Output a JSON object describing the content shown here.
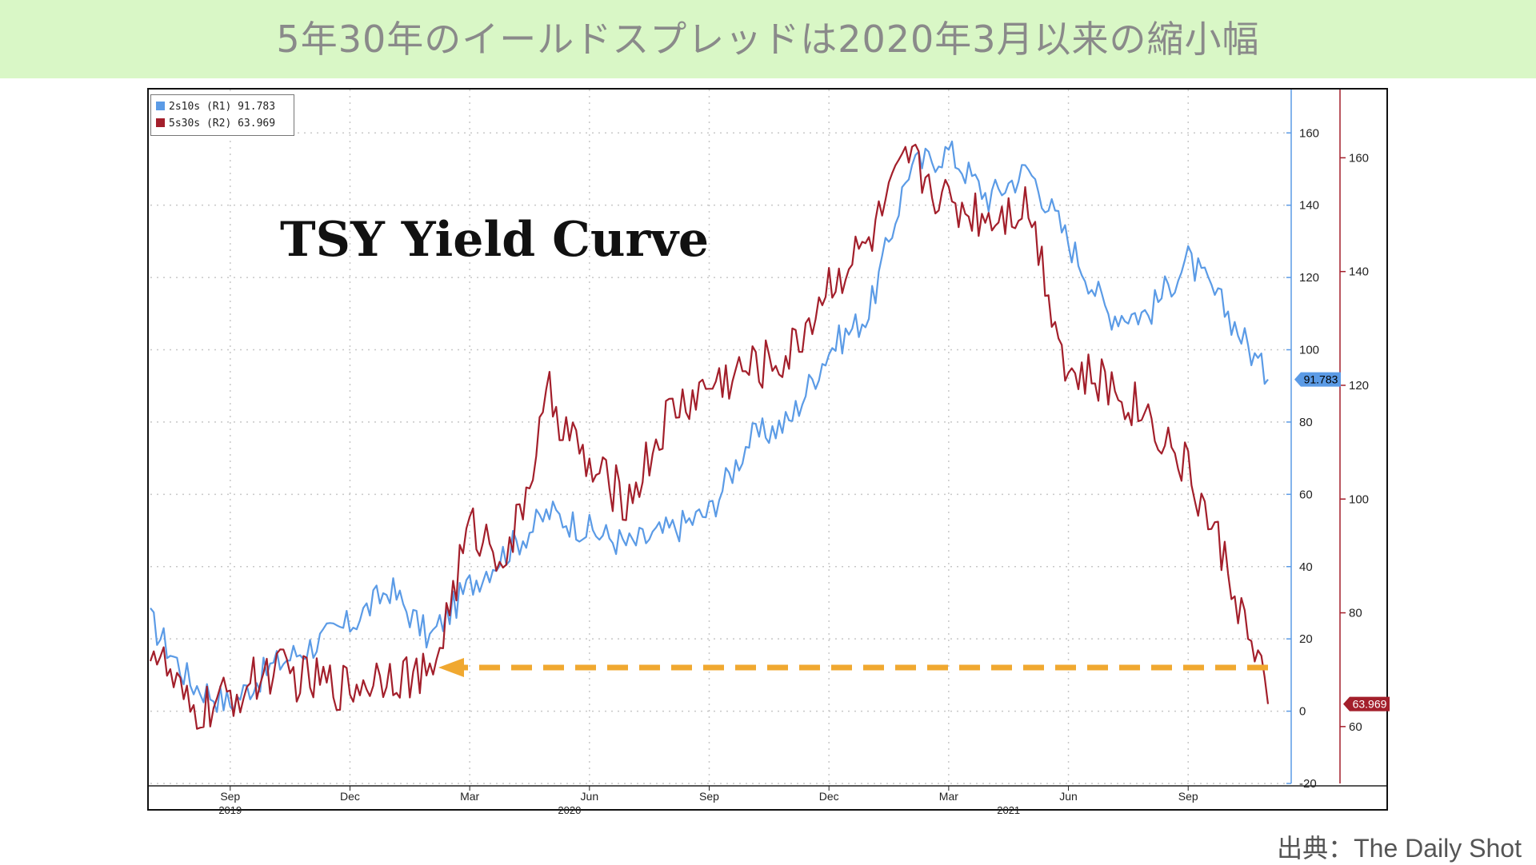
{
  "header": {
    "title": "5年30年のイールドスプレッドは2020年3月以来の縮小幅"
  },
  "source": "出典：The Daily Shot",
  "colors": {
    "banner_bg": "#d9f7c6",
    "series_2s10s": "#5b9be6",
    "series_5s30s": "#a31f2b",
    "arrow": "#f0a830"
  },
  "chart_data": {
    "type": "line",
    "title": "TSY Yield Curve",
    "legend": {
      "placement": "top-left",
      "entries": [
        {
          "label": "2s10s (R1) 91.783",
          "color": "#5b9be6"
        },
        {
          "label": "5s30s (R2) 63.969",
          "color": "#a31f2b"
        }
      ]
    },
    "x_ticks": [
      "Sep",
      "Dec",
      "Mar",
      "Jun",
      "Sep",
      "Dec",
      "Mar",
      "Jun",
      "Sep"
    ],
    "x_year_labels": [
      "2019",
      "2020",
      "2021"
    ],
    "axis_r1": {
      "ticks": [
        160,
        140,
        120,
        100,
        80,
        60,
        40,
        20,
        0,
        -20
      ],
      "range": [
        -20,
        172
      ]
    },
    "axis_r2": {
      "ticks": [
        160,
        140,
        120,
        100,
        80,
        60
      ],
      "range": [
        50,
        172
      ]
    },
    "last_values": {
      "r1": "91.783",
      "r2": "63.969"
    },
    "grid": true,
    "annotation": "dashed arrow from latest 5s30s value back to early 2020 level",
    "series": [
      {
        "name": "2s10s (R1)",
        "axis": "r1",
        "color": "#5b9be6",
        "x": [
          "2019-07",
          "2019-08",
          "2019-09",
          "2019-10",
          "2019-11",
          "2019-12",
          "2020-01",
          "2020-02",
          "2020-03",
          "2020-04",
          "2020-05",
          "2020-06",
          "2020-07",
          "2020-08",
          "2020-09",
          "2020-10",
          "2020-11",
          "2020-12",
          "2021-01",
          "2021-02",
          "2021-03",
          "2021-04",
          "2021-05",
          "2021-06",
          "2021-07",
          "2021-08",
          "2021-09",
          "2021-10",
          "2021-11"
        ],
        "values": [
          25,
          8,
          2,
          12,
          18,
          24,
          34,
          20,
          35,
          45,
          55,
          50,
          46,
          50,
          55,
          75,
          80,
          100,
          110,
          150,
          155,
          142,
          150,
          130,
          110,
          110,
          125,
          110,
          91.783
        ]
      },
      {
        "name": "5s30s (R2)",
        "axis": "r2",
        "color": "#a31f2b",
        "x": [
          "2019-07",
          "2019-08",
          "2019-09",
          "2019-10",
          "2019-11",
          "2019-12",
          "2020-01",
          "2020-02",
          "2020-03",
          "2020-04",
          "2020-05",
          "2020-06",
          "2020-07",
          "2020-08",
          "2020-09",
          "2020-10",
          "2020-11",
          "2020-12",
          "2021-01",
          "2021-02",
          "2021-03",
          "2021-04",
          "2021-05",
          "2021-06",
          "2021-07",
          "2021-08",
          "2021-09",
          "2021-10",
          "2021-11"
        ],
        "values": [
          75,
          62,
          65,
          70,
          68,
          67,
          70,
          68,
          95,
          90,
          118,
          105,
          100,
          115,
          120,
          123,
          125,
          138,
          145,
          160,
          152,
          150,
          152,
          122,
          120,
          115,
          105,
          88,
          63.969
        ]
      }
    ]
  }
}
